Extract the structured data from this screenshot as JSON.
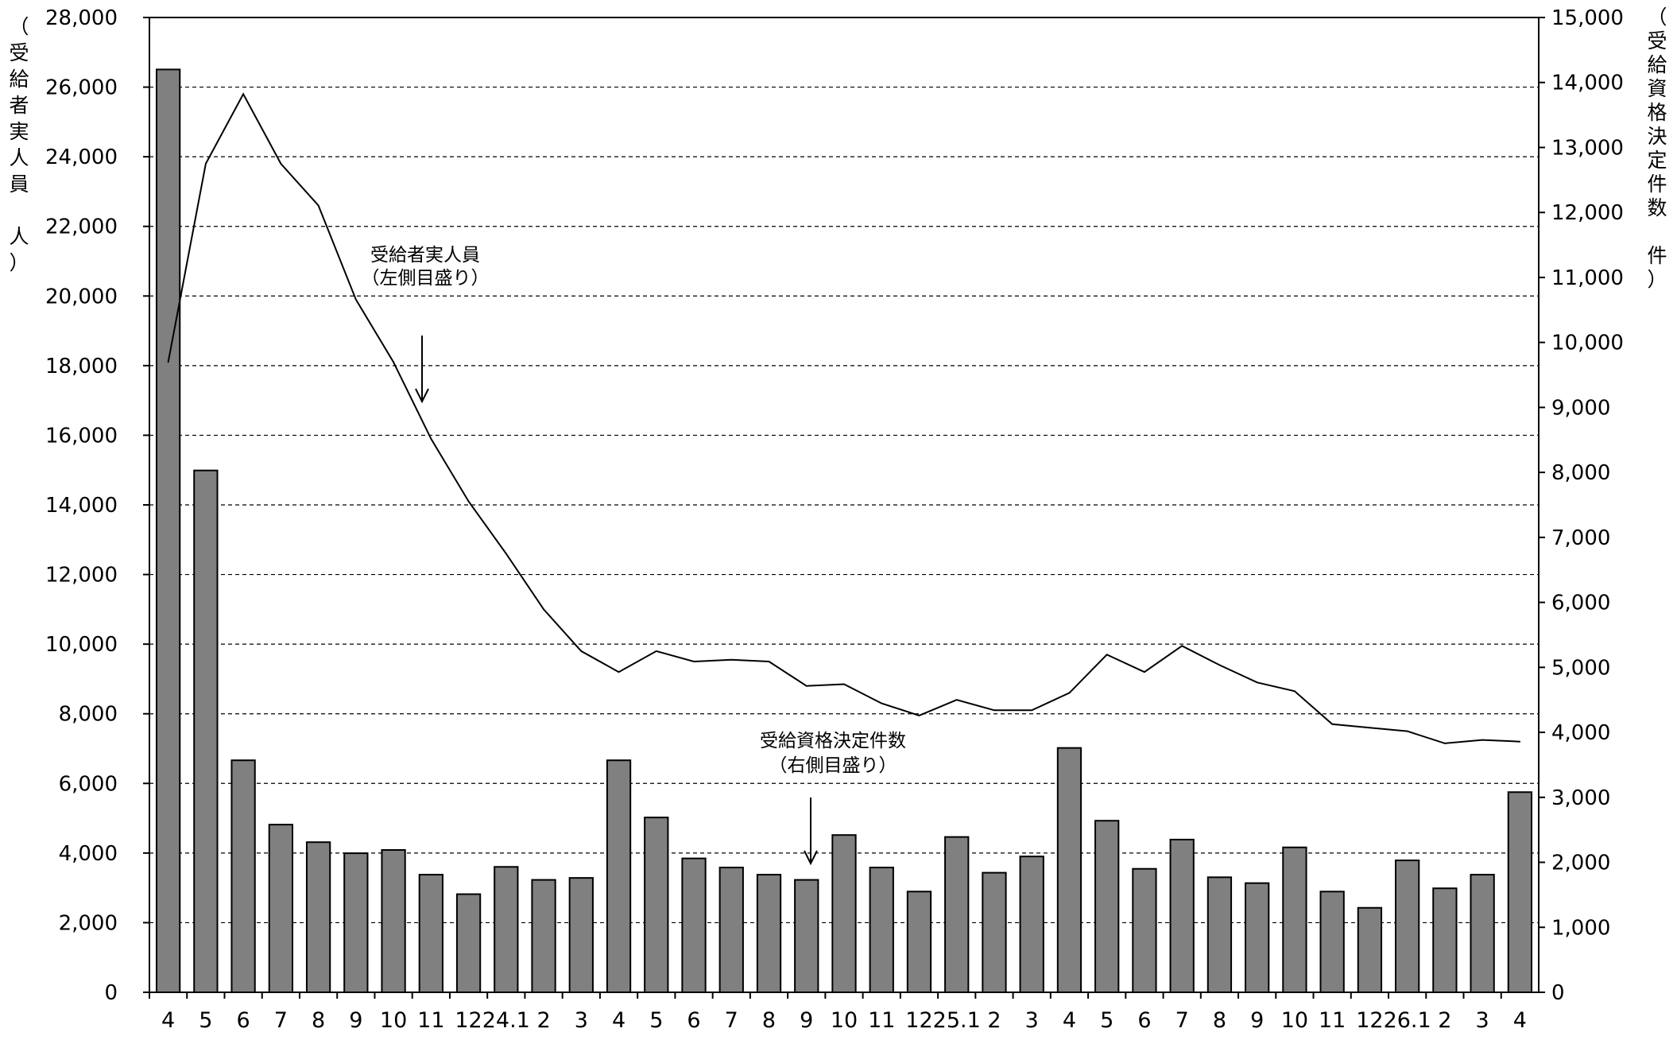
{
  "chart_data": {
    "type": "bar+line",
    "x_labels": [
      "4",
      "5",
      "6",
      "7",
      "8",
      "9",
      "10",
      "11",
      "12",
      "24.1",
      "2",
      "3",
      "4",
      "5",
      "6",
      "7",
      "8",
      "9",
      "10",
      "11",
      "12",
      "25.1",
      "2",
      "3",
      "4",
      "5",
      "6",
      "7",
      "8",
      "9",
      "10",
      "11",
      "12",
      "26.1",
      "2",
      "3",
      "4"
    ],
    "y_left": {
      "label": "（受給者実人員　人）",
      "label_chars": [
        "（",
        "受",
        "給",
        "者",
        "実",
        "人",
        "員",
        "",
        "人",
        "）"
      ],
      "range": [
        0,
        28000
      ],
      "ticks": [
        "0",
        "2,000",
        "4,000",
        "6,000",
        "8,000",
        "10,000",
        "12,000",
        "14,000",
        "16,000",
        "18,000",
        "20,000",
        "22,000",
        "24,000",
        "26,000",
        "28,000"
      ]
    },
    "y_right": {
      "label": "（受給資格決定件数　件）",
      "label_chars": [
        "（",
        "受",
        "給",
        "資",
        "格",
        "決",
        "定",
        "件",
        "数",
        "",
        "件",
        "）"
      ],
      "range": [
        0,
        15000
      ],
      "ticks": [
        "0",
        "1,000",
        "2,000",
        "3,000",
        "4,000",
        "5,000",
        "6,000",
        "7,000",
        "8,000",
        "9,000",
        "10,000",
        "11,000",
        "12,000",
        "13,000",
        "14,000",
        "15,000"
      ]
    },
    "grid": "horizontal dashed",
    "series": [
      {
        "name": "受給資格決定件数",
        "kind": "bar",
        "axis": "right",
        "color": "#808080",
        "values": [
          14200,
          8030,
          3570,
          2580,
          2310,
          2140,
          2190,
          1810,
          1510,
          1930,
          1730,
          1760,
          3570,
          2690,
          2060,
          1920,
          1810,
          1730,
          2420,
          1920,
          1550,
          2390,
          1840,
          2090,
          3760,
          2640,
          1900,
          2350,
          1770,
          1680,
          2230,
          1550,
          1300,
          2030,
          1600,
          1810,
          3080
        ]
      },
      {
        "name": "受給者実人員",
        "kind": "line",
        "axis": "left",
        "color": "#000000",
        "values": [
          18100,
          23800,
          25800,
          23800,
          22600,
          19900,
          18100,
          15900,
          14100,
          12600,
          11000,
          9800,
          9200,
          9800,
          9500,
          9550,
          9500,
          8800,
          8850,
          8300,
          7950,
          8400,
          8100,
          8100,
          8600,
          9700,
          9200,
          9950,
          9400,
          8900,
          8650,
          7700,
          7600,
          7500,
          7150,
          7250,
          7200
        ]
      }
    ],
    "annotations": [
      {
        "lines": [
          "受給者実人員",
          "（左側目盛り）"
        ],
        "points_to": "受給者実人員"
      },
      {
        "lines": [
          "受給資格決定件数",
          "（右側目盛り）"
        ],
        "points_to": "受給資格決定件数"
      }
    ]
  }
}
